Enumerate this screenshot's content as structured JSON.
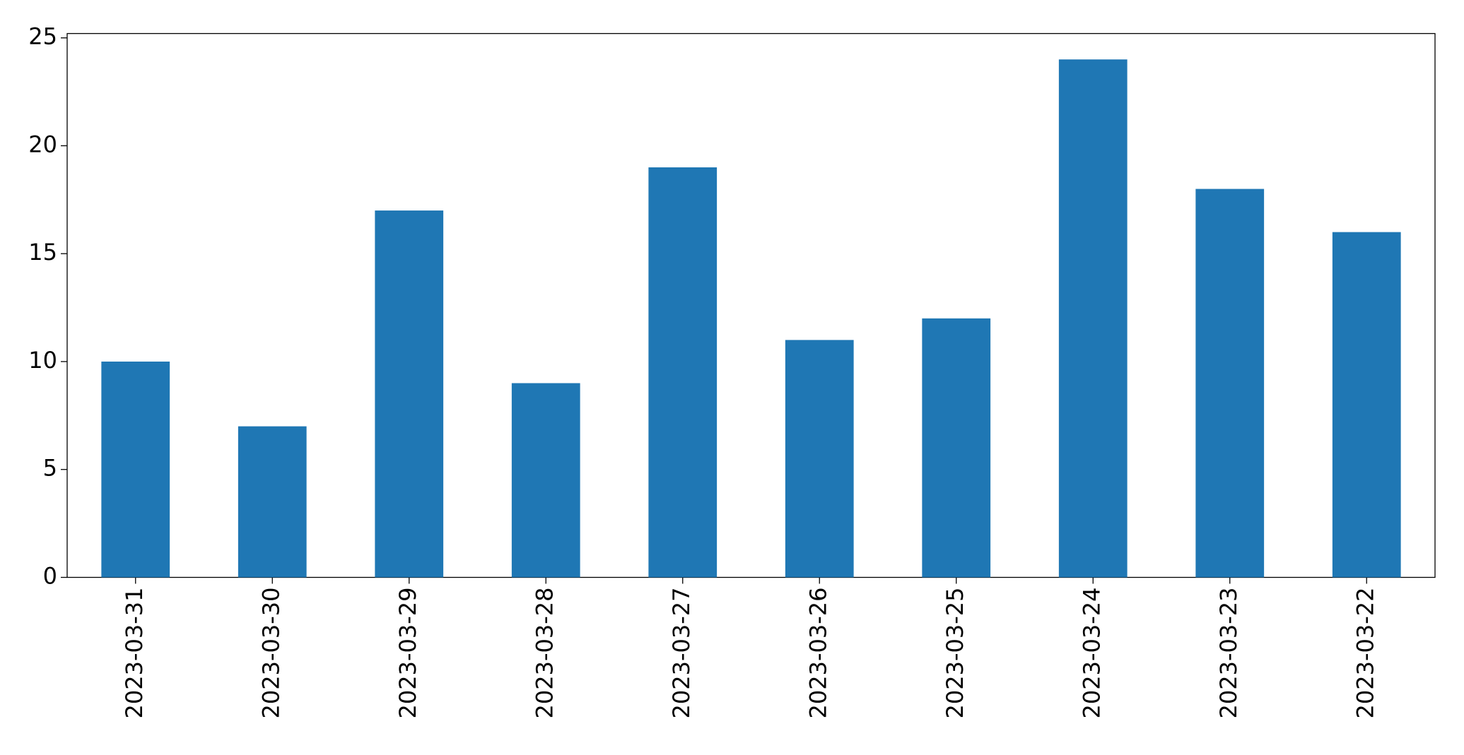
{
  "chart_data": {
    "type": "bar",
    "categories": [
      "2023-03-31",
      "2023-03-30",
      "2023-03-29",
      "2023-03-28",
      "2023-03-27",
      "2023-03-26",
      "2023-03-25",
      "2023-03-24",
      "2023-03-23",
      "2023-03-22"
    ],
    "values": [
      10,
      7,
      17,
      9,
      19,
      11,
      12,
      24,
      18,
      16
    ],
    "color": "#1f77b4",
    "ylim": [
      0,
      25.2
    ],
    "yticks": [
      0,
      5,
      10,
      15,
      20,
      25
    ],
    "grid": false
  }
}
